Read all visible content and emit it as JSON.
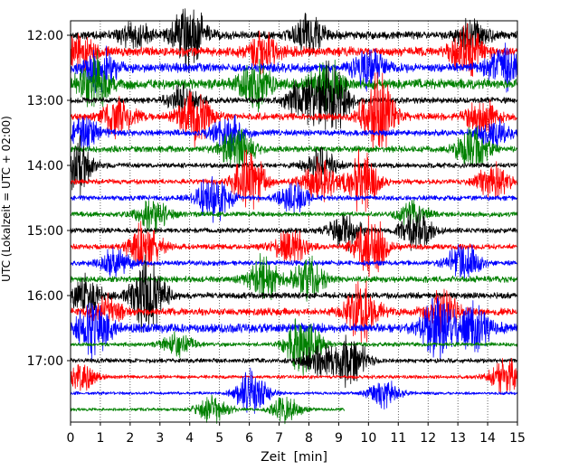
{
  "chart_data": {
    "type": "line",
    "title": "",
    "xlabel": "Zeit  [min]",
    "ylabel": "UTC (Lokalzeit = UTC + 02:00)",
    "xlim": [
      0,
      15
    ],
    "x_ticks": [
      0,
      1,
      2,
      3,
      4,
      5,
      6,
      7,
      8,
      9,
      10,
      11,
      12,
      13,
      14,
      15
    ],
    "y_ticks": [
      {
        "label": "12:00",
        "row": 0
      },
      {
        "label": "13:00",
        "row": 4
      },
      {
        "label": "14:00",
        "row": 8
      },
      {
        "label": "15:00",
        "row": 12
      },
      {
        "label": "16:00",
        "row": 16
      },
      {
        "label": "17:00",
        "row": 20
      }
    ],
    "grid": "vertical dotted",
    "line_colors": [
      "#000000",
      "#ff0000",
      "#0000ff",
      "#008000"
    ],
    "series": [
      {
        "row_start": "12:00",
        "x_end": 15,
        "amplitude": 0.8,
        "bursts": [
          [
            2.2,
            0.6
          ],
          [
            4.0,
            1.4
          ],
          [
            8.0,
            0.8
          ],
          [
            13.5,
            0.6
          ]
        ]
      },
      {
        "row_start": "12:15",
        "x_end": 15,
        "amplitude": 0.9,
        "bursts": [
          [
            0.2,
            0.8
          ],
          [
            6.5,
            0.8
          ],
          [
            13.3,
            1.0
          ]
        ]
      },
      {
        "row_start": "12:30",
        "x_end": 15,
        "amplitude": 0.9,
        "bursts": [
          [
            1.0,
            0.9
          ],
          [
            10.0,
            0.8
          ],
          [
            14.5,
            1.0
          ]
        ]
      },
      {
        "row_start": "12:45",
        "x_end": 15,
        "amplitude": 1.0,
        "bursts": [
          [
            0.8,
            1.2
          ],
          [
            6.2,
            1.0
          ],
          [
            8.6,
            1.0
          ]
        ]
      },
      {
        "row_start": "13:00",
        "x_end": 15,
        "amplitude": 0.6,
        "bursts": [
          [
            3.8,
            0.6
          ],
          [
            7.8,
            1.0
          ],
          [
            8.8,
            1.6
          ]
        ]
      },
      {
        "row_start": "13:15",
        "x_end": 15,
        "amplitude": 0.7,
        "bursts": [
          [
            1.6,
            0.8
          ],
          [
            4.2,
            1.3
          ],
          [
            10.3,
            1.8
          ],
          [
            13.8,
            0.7
          ]
        ]
      },
      {
        "row_start": "13:30",
        "x_end": 15,
        "amplitude": 0.6,
        "bursts": [
          [
            0.5,
            0.7
          ],
          [
            5.3,
            0.8
          ],
          [
            14.2,
            0.6
          ]
        ]
      },
      {
        "row_start": "13:45",
        "x_end": 15,
        "amplitude": 0.6,
        "bursts": [
          [
            5.6,
            1.0
          ],
          [
            13.5,
            0.9
          ]
        ]
      },
      {
        "row_start": "14:00",
        "x_end": 15,
        "amplitude": 0.5,
        "bursts": [
          [
            0.2,
            1.2
          ],
          [
            8.4,
            0.7
          ]
        ]
      },
      {
        "row_start": "14:15",
        "x_end": 15,
        "amplitude": 0.5,
        "bursts": [
          [
            6.0,
            1.3
          ],
          [
            8.3,
            1.0
          ],
          [
            9.8,
            1.3
          ],
          [
            14.2,
            0.8
          ]
        ]
      },
      {
        "row_start": "14:30",
        "x_end": 15,
        "amplitude": 0.5,
        "bursts": [
          [
            4.8,
            1.1
          ],
          [
            7.5,
            0.6
          ]
        ]
      },
      {
        "row_start": "14:45",
        "x_end": 15,
        "amplitude": 0.5,
        "bursts": [
          [
            2.8,
            0.7
          ],
          [
            11.5,
            0.5
          ]
        ]
      },
      {
        "row_start": "15:00",
        "x_end": 15,
        "amplitude": 0.5,
        "bursts": [
          [
            9.2,
            0.8
          ],
          [
            11.6,
            0.9
          ]
        ]
      },
      {
        "row_start": "15:15",
        "x_end": 15,
        "amplitude": 0.55,
        "bursts": [
          [
            2.5,
            1.0
          ],
          [
            7.4,
            0.8
          ],
          [
            10.1,
            1.2
          ]
        ]
      },
      {
        "row_start": "15:30",
        "x_end": 15,
        "amplitude": 0.5,
        "bursts": [
          [
            13.2,
            0.9
          ],
          [
            1.5,
            0.6
          ]
        ]
      },
      {
        "row_start": "15:45",
        "x_end": 15,
        "amplitude": 0.6,
        "bursts": [
          [
            6.5,
            1.0
          ],
          [
            8.0,
            0.9
          ]
        ]
      },
      {
        "row_start": "16:00",
        "x_end": 15,
        "amplitude": 0.6,
        "bursts": [
          [
            2.6,
            1.8
          ],
          [
            0.5,
            0.8
          ]
        ]
      },
      {
        "row_start": "16:15",
        "x_end": 15,
        "amplitude": 0.7,
        "bursts": [
          [
            9.8,
            1.3
          ],
          [
            12.5,
            0.9
          ],
          [
            1.2,
            0.6
          ]
        ]
      },
      {
        "row_start": "16:30",
        "x_end": 15,
        "amplitude": 0.9,
        "bursts": [
          [
            0.8,
            1.3
          ],
          [
            12.3,
            1.5
          ],
          [
            13.6,
            1.0
          ]
        ]
      },
      {
        "row_start": "16:45",
        "x_end": 15,
        "amplitude": 0.4,
        "bursts": [
          [
            7.8,
            1.4
          ],
          [
            3.6,
            0.5
          ]
        ]
      },
      {
        "row_start": "17:00",
        "x_end": 15,
        "amplitude": 0.45,
        "bursts": [
          [
            9.4,
            1.1
          ],
          [
            8.3,
            0.7
          ]
        ]
      },
      {
        "row_start": "17:15",
        "x_end": 15,
        "amplitude": 0.35,
        "bursts": [
          [
            0.3,
            0.6
          ],
          [
            14.6,
            0.8
          ]
        ]
      },
      {
        "row_start": "17:30",
        "x_end": 15,
        "amplitude": 0.3,
        "bursts": [
          [
            6.1,
            1.0
          ],
          [
            10.5,
            0.6
          ]
        ]
      },
      {
        "row_start": "17:45",
        "x_end": 9.2,
        "amplitude": 0.3,
        "bursts": [
          [
            4.8,
            0.6
          ],
          [
            7.2,
            0.5
          ]
        ]
      }
    ]
  }
}
